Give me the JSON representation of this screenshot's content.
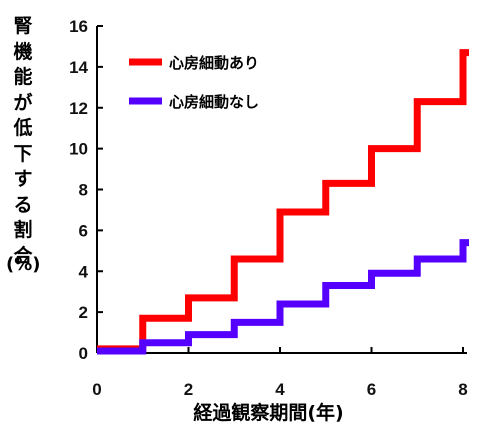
{
  "chart_data": {
    "type": "line",
    "step": true,
    "ylabel": "腎機能が低下する割合",
    "ylabel_unit": "(%)",
    "xlabel": "経過観察期間(年)",
    "xlim": [
      0,
      8
    ],
    "ylim": [
      0,
      16
    ],
    "x_ticks": [
      0,
      2,
      4,
      6,
      8
    ],
    "y_ticks": [
      0,
      2,
      4,
      6,
      8,
      10,
      12,
      14,
      16
    ],
    "grid": false,
    "legend_position": "top-left",
    "series": [
      {
        "name": "心房細動あり",
        "color": "#ff0000",
        "x": [
          0,
          1,
          2,
          3,
          4,
          5,
          6,
          7,
          8
        ],
        "y": [
          0.2,
          1.7,
          2.7,
          4.6,
          6.9,
          8.3,
          10.0,
          12.3,
          14.7
        ]
      },
      {
        "name": "心房細動なし",
        "color": "#5500ff",
        "x": [
          0,
          1,
          2,
          3,
          4,
          5,
          6,
          7,
          8
        ],
        "y": [
          0.1,
          0.5,
          0.9,
          1.5,
          2.4,
          3.3,
          3.9,
          4.6,
          5.4
        ]
      }
    ]
  }
}
